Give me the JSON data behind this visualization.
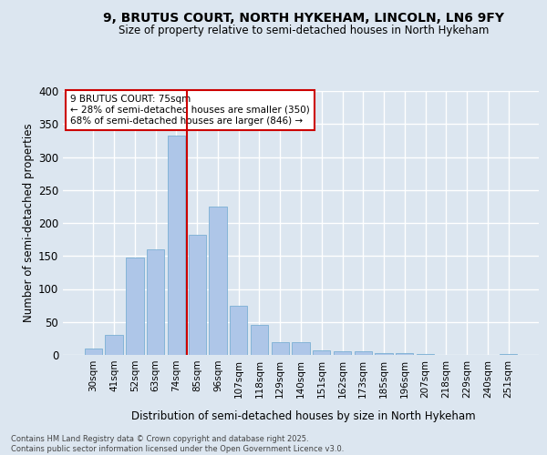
{
  "title": "9, BRUTUS COURT, NORTH HYKEHAM, LINCOLN, LN6 9FY",
  "subtitle": "Size of property relative to semi-detached houses in North Hykeham",
  "xlabel": "Distribution of semi-detached houses by size in North Hykeham",
  "ylabel": "Number of semi-detached properties",
  "categories": [
    "30sqm",
    "41sqm",
    "52sqm",
    "63sqm",
    "74sqm",
    "85sqm",
    "96sqm",
    "107sqm",
    "118sqm",
    "129sqm",
    "140sqm",
    "151sqm",
    "162sqm",
    "173sqm",
    "185sqm",
    "196sqm",
    "207sqm",
    "218sqm",
    "229sqm",
    "240sqm",
    "251sqm"
  ],
  "values": [
    9,
    31,
    148,
    160,
    333,
    182,
    225,
    74,
    46,
    20,
    20,
    7,
    5,
    5,
    3,
    3,
    1,
    0,
    0,
    0,
    1
  ],
  "bar_color": "#aec6e8",
  "bar_edge_color": "#7aafd4",
  "vline_color": "#cc0000",
  "vline_index": 4.5,
  "annotation_title": "9 BRUTUS COURT: 75sqm",
  "annotation_line2": "← 28% of semi-detached houses are smaller (350)",
  "annotation_line3": "68% of semi-detached houses are larger (846) →",
  "annotation_box_edgecolor": "#cc0000",
  "ylim": [
    0,
    400
  ],
  "yticks": [
    0,
    50,
    100,
    150,
    200,
    250,
    300,
    350,
    400
  ],
  "background_color": "#dce6f0",
  "grid_color": "#ffffff",
  "footer_line1": "Contains HM Land Registry data © Crown copyright and database right 2025.",
  "footer_line2": "Contains public sector information licensed under the Open Government Licence v3.0."
}
